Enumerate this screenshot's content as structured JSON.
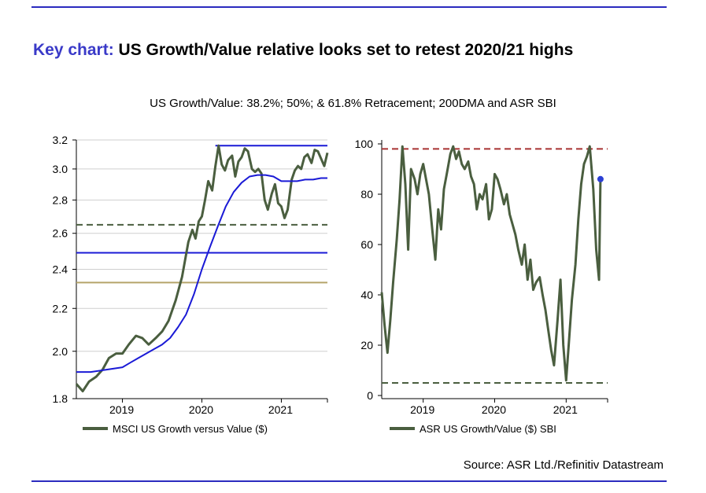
{
  "header": {
    "title_prefix": "Key chart:",
    "title_main": "US Growth/Value relative looks set to retest 2020/21 highs",
    "subtitle": "US Growth/Value: 38.2%; 50%; & 61.8% Retracement; 200DMA and ASR SBI"
  },
  "source": "Source: ASR Ltd./Refinitiv Datastream",
  "colors": {
    "series": "#4a5e3f",
    "ma": "#1a1ad6",
    "hline_top": "#1a1ad6",
    "retrace_382": "#4a5e3f",
    "retrace_50": "#1a1ad6",
    "retrace_618": "#b5a46a",
    "sbi_upper": "#a83232",
    "sbi_lower": "#4a5e3f",
    "marker": "#2b3fd4"
  },
  "chart_data": [
    {
      "type": "line",
      "title": "MSCI US Growth versus Value ($)",
      "legend": "MSCI US Growth versus Value ($)",
      "scale": "log",
      "ylim": [
        1.8,
        3.2
      ],
      "yticks": [
        1.8,
        2.0,
        2.2,
        2.4,
        2.6,
        2.8,
        3.0,
        3.2
      ],
      "ytick_labels": [
        "1.8",
        "2.0",
        "2.2",
        "2.4",
        "2.6",
        "2.8",
        "3.0",
        "3.2"
      ],
      "xlim": [
        2018.42,
        2021.58
      ],
      "xticks": [
        2019,
        2020,
        2021
      ],
      "xtick_labels": [
        "2019",
        "2020",
        "2021"
      ],
      "hlines": [
        {
          "name": "high",
          "y": 3.16
        },
        {
          "name": "38.2% retracement",
          "y": 2.65,
          "style": "dashed"
        },
        {
          "name": "50% retracement",
          "y": 2.49
        },
        {
          "name": "61.8% retracement",
          "y": 2.33
        }
      ],
      "series": [
        {
          "name": "MSCI US Growth versus Value ($)",
          "x": [
            2018.42,
            2018.5,
            2018.58,
            2018.67,
            2018.75,
            2018.83,
            2018.92,
            2019.0,
            2019.08,
            2019.17,
            2019.25,
            2019.33,
            2019.42,
            2019.5,
            2019.58,
            2019.67,
            2019.75,
            2019.83,
            2019.88,
            2019.92,
            2019.96,
            2020.0,
            2020.04,
            2020.08,
            2020.13,
            2020.17,
            2020.21,
            2020.25,
            2020.29,
            2020.33,
            2020.38,
            2020.42,
            2020.46,
            2020.5,
            2020.54,
            2020.58,
            2020.63,
            2020.67,
            2020.71,
            2020.75,
            2020.79,
            2020.83,
            2020.88,
            2020.92,
            2020.96,
            2021.0,
            2021.04,
            2021.08,
            2021.13,
            2021.17,
            2021.21,
            2021.25,
            2021.29,
            2021.33,
            2021.38,
            2021.42,
            2021.46,
            2021.5,
            2021.54,
            2021.58
          ],
          "y": [
            1.86,
            1.83,
            1.87,
            1.89,
            1.92,
            1.97,
            1.99,
            1.99,
            2.03,
            2.07,
            2.06,
            2.03,
            2.06,
            2.09,
            2.14,
            2.24,
            2.36,
            2.55,
            2.62,
            2.57,
            2.67,
            2.7,
            2.8,
            2.92,
            2.86,
            3.02,
            3.16,
            3.03,
            2.99,
            3.06,
            3.09,
            2.95,
            3.05,
            3.08,
            3.14,
            3.12,
            3.0,
            2.98,
            3.0,
            2.97,
            2.8,
            2.74,
            2.84,
            2.9,
            2.78,
            2.76,
            2.69,
            2.74,
            2.93,
            2.99,
            3.02,
            3.0,
            3.08,
            3.1,
            3.04,
            3.13,
            3.12,
            3.07,
            3.02,
            3.11
          ]
        },
        {
          "name": "200DMA",
          "x": [
            2018.42,
            2018.6,
            2018.8,
            2019.0,
            2019.1,
            2019.2,
            2019.3,
            2019.4,
            2019.5,
            2019.6,
            2019.7,
            2019.8,
            2019.9,
            2020.0,
            2020.1,
            2020.2,
            2020.3,
            2020.4,
            2020.5,
            2020.6,
            2020.7,
            2020.8,
            2020.9,
            2021.0,
            2021.1,
            2021.2,
            2021.3,
            2021.4,
            2021.5,
            2021.58
          ],
          "y": [
            1.91,
            1.91,
            1.92,
            1.93,
            1.95,
            1.97,
            1.99,
            2.01,
            2.03,
            2.06,
            2.11,
            2.17,
            2.27,
            2.4,
            2.52,
            2.64,
            2.76,
            2.85,
            2.91,
            2.95,
            2.96,
            2.96,
            2.95,
            2.92,
            2.92,
            2.92,
            2.93,
            2.93,
            2.94,
            2.94
          ]
        }
      ]
    },
    {
      "type": "line",
      "title": "ASR US Growth/Value ($) SBI",
      "legend": "ASR US Growth/Value ($) SBI",
      "ylim": [
        0,
        100
      ],
      "yticks": [
        0,
        20,
        40,
        60,
        80,
        100
      ],
      "ytick_labels": [
        "0",
        "20",
        "40",
        "60",
        "80",
        "100"
      ],
      "xlim": [
        2018.42,
        2021.58
      ],
      "xticks": [
        2019,
        2020,
        2021
      ],
      "xtick_labels": [
        "2019",
        "2020",
        "2021"
      ],
      "hlines": [
        {
          "name": "upper band",
          "y": 98,
          "style": "dashed"
        },
        {
          "name": "lower band",
          "y": 5,
          "style": "dashed"
        }
      ],
      "last_point": {
        "x": 2021.48,
        "y": 86
      },
      "series": [
        {
          "name": "ASR US Growth/Value ($) SBI",
          "x": [
            2018.42,
            2018.46,
            2018.5,
            2018.54,
            2018.58,
            2018.63,
            2018.67,
            2018.71,
            2018.75,
            2018.79,
            2018.83,
            2018.88,
            2018.92,
            2018.96,
            2019.0,
            2019.04,
            2019.08,
            2019.13,
            2019.17,
            2019.21,
            2019.25,
            2019.29,
            2019.33,
            2019.38,
            2019.42,
            2019.46,
            2019.5,
            2019.54,
            2019.58,
            2019.63,
            2019.67,
            2019.71,
            2019.75,
            2019.79,
            2019.83,
            2019.88,
            2019.92,
            2019.96,
            2020.0,
            2020.04,
            2020.08,
            2020.13,
            2020.17,
            2020.21,
            2020.25,
            2020.29,
            2020.33,
            2020.38,
            2020.42,
            2020.46,
            2020.5,
            2020.54,
            2020.58,
            2020.63,
            2020.67,
            2020.71,
            2020.75,
            2020.79,
            2020.83,
            2020.88,
            2020.92,
            2020.96,
            2021.0,
            2021.04,
            2021.08,
            2021.13,
            2021.17,
            2021.21,
            2021.25,
            2021.29,
            2021.33,
            2021.38,
            2021.42,
            2021.46,
            2021.48
          ],
          "y": [
            41,
            28,
            17,
            30,
            45,
            62,
            78,
            99,
            84,
            58,
            90,
            86,
            80,
            88,
            92,
            86,
            80,
            65,
            54,
            74,
            66,
            82,
            88,
            96,
            99,
            94,
            97,
            92,
            90,
            93,
            87,
            84,
            74,
            80,
            78,
            84,
            70,
            74,
            88,
            86,
            82,
            76,
            80,
            72,
            68,
            64,
            58,
            52,
            60,
            46,
            54,
            42,
            45,
            47,
            40,
            34,
            26,
            18,
            12,
            30,
            46,
            20,
            6,
            22,
            38,
            52,
            70,
            84,
            92,
            95,
            99,
            82,
            58,
            46,
            86
          ]
        }
      ]
    }
  ],
  "legends": {
    "left": "MSCI US Growth versus Value ($)",
    "right": "ASR US Growth/Value ($) SBI"
  }
}
